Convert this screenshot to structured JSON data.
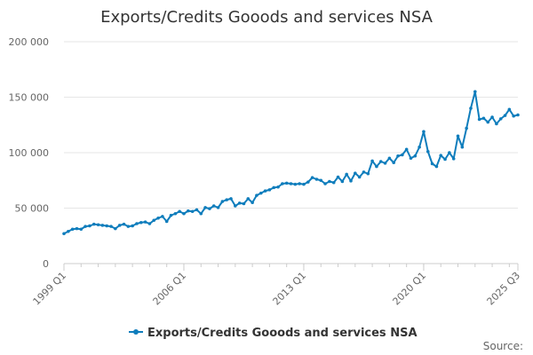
{
  "chart_data": {
    "type": "line",
    "title": "Exports/Credits Gooods and services NSA",
    "xlabel": "",
    "ylabel": "",
    "ylim": [
      0,
      200000
    ],
    "yticks": [
      0,
      50000,
      100000,
      150000,
      200000
    ],
    "ytick_labels": [
      "0",
      "50 000",
      "100 000",
      "150 000",
      "200 000"
    ],
    "x_tick_labels": [
      "1999 Q1",
      "2006 Q1",
      "2013 Q1",
      "2020 Q1",
      "2025 Q3"
    ],
    "grid": true,
    "legend_position": "bottom",
    "series": [
      {
        "name": "Exports/Credits Gooods and services NSA",
        "color": "#0f7dbc",
        "x": [
          "1999 Q1",
          "1999 Q2",
          "1999 Q3",
          "1999 Q4",
          "2000 Q1",
          "2000 Q2",
          "2000 Q3",
          "2000 Q4",
          "2001 Q1",
          "2001 Q2",
          "2001 Q3",
          "2001 Q4",
          "2002 Q1",
          "2002 Q2",
          "2002 Q3",
          "2002 Q4",
          "2003 Q1",
          "2003 Q2",
          "2003 Q3",
          "2003 Q4",
          "2004 Q1",
          "2004 Q2",
          "2004 Q3",
          "2004 Q4",
          "2005 Q1",
          "2005 Q2",
          "2005 Q3",
          "2005 Q4",
          "2006 Q1",
          "2006 Q2",
          "2006 Q3",
          "2006 Q4",
          "2007 Q1",
          "2007 Q2",
          "2007 Q3",
          "2007 Q4",
          "2008 Q1",
          "2008 Q2",
          "2008 Q3",
          "2008 Q4",
          "2009 Q1",
          "2009 Q2",
          "2009 Q3",
          "2009 Q4",
          "2010 Q1",
          "2010 Q2",
          "2010 Q3",
          "2010 Q4",
          "2011 Q1",
          "2011 Q2",
          "2011 Q3",
          "2011 Q4",
          "2012 Q1",
          "2012 Q2",
          "2012 Q3",
          "2012 Q4",
          "2013 Q1",
          "2013 Q2",
          "2013 Q3",
          "2013 Q4",
          "2014 Q1",
          "2014 Q2",
          "2014 Q3",
          "2014 Q4",
          "2015 Q1",
          "2015 Q2",
          "2015 Q3",
          "2015 Q4",
          "2016 Q1",
          "2016 Q2",
          "2016 Q3",
          "2016 Q4",
          "2017 Q1",
          "2017 Q2",
          "2017 Q3",
          "2017 Q4",
          "2018 Q1",
          "2018 Q2",
          "2018 Q3",
          "2018 Q4",
          "2019 Q1",
          "2019 Q2",
          "2019 Q3",
          "2019 Q4",
          "2020 Q1",
          "2020 Q2",
          "2020 Q3",
          "2020 Q4",
          "2021 Q1",
          "2021 Q2",
          "2021 Q3",
          "2021 Q4",
          "2022 Q1",
          "2022 Q2",
          "2022 Q3",
          "2022 Q4",
          "2023 Q1",
          "2023 Q2",
          "2023 Q3",
          "2023 Q4",
          "2024 Q1",
          "2024 Q2",
          "2024 Q3",
          "2024 Q4",
          "2025 Q1",
          "2025 Q2",
          "2025 Q3"
        ],
        "values": [
          27000,
          29000,
          31000,
          31500,
          31000,
          33500,
          34000,
          35500,
          35000,
          34500,
          34000,
          33500,
          31500,
          34500,
          35500,
          33500,
          34000,
          36000,
          37000,
          37500,
          36000,
          39000,
          41000,
          42500,
          38000,
          43500,
          45000,
          47000,
          45000,
          47500,
          47000,
          48500,
          45000,
          50500,
          49500,
          52000,
          50500,
          56000,
          57500,
          58500,
          52000,
          54500,
          54000,
          58500,
          55000,
          61500,
          63500,
          65500,
          66500,
          68500,
          69000,
          72000,
          72500,
          72000,
          71500,
          72000,
          71500,
          73500,
          77500,
          76000,
          75000,
          72000,
          74000,
          73000,
          78000,
          74000,
          80500,
          74500,
          81500,
          78000,
          82500,
          81000,
          92500,
          87500,
          92000,
          90500,
          95000,
          91000,
          97000,
          98000,
          103000,
          95000,
          97000,
          105000,
          119000,
          101000,
          90000,
          87500,
          97500,
          94000,
          100000,
          94500,
          115000,
          105000,
          122000,
          140000,
          155000,
          130000,
          131000,
          127500,
          132000,
          126000,
          130500,
          133500,
          139000,
          133000,
          134000
        ]
      }
    ],
    "source_text": "Source:"
  }
}
